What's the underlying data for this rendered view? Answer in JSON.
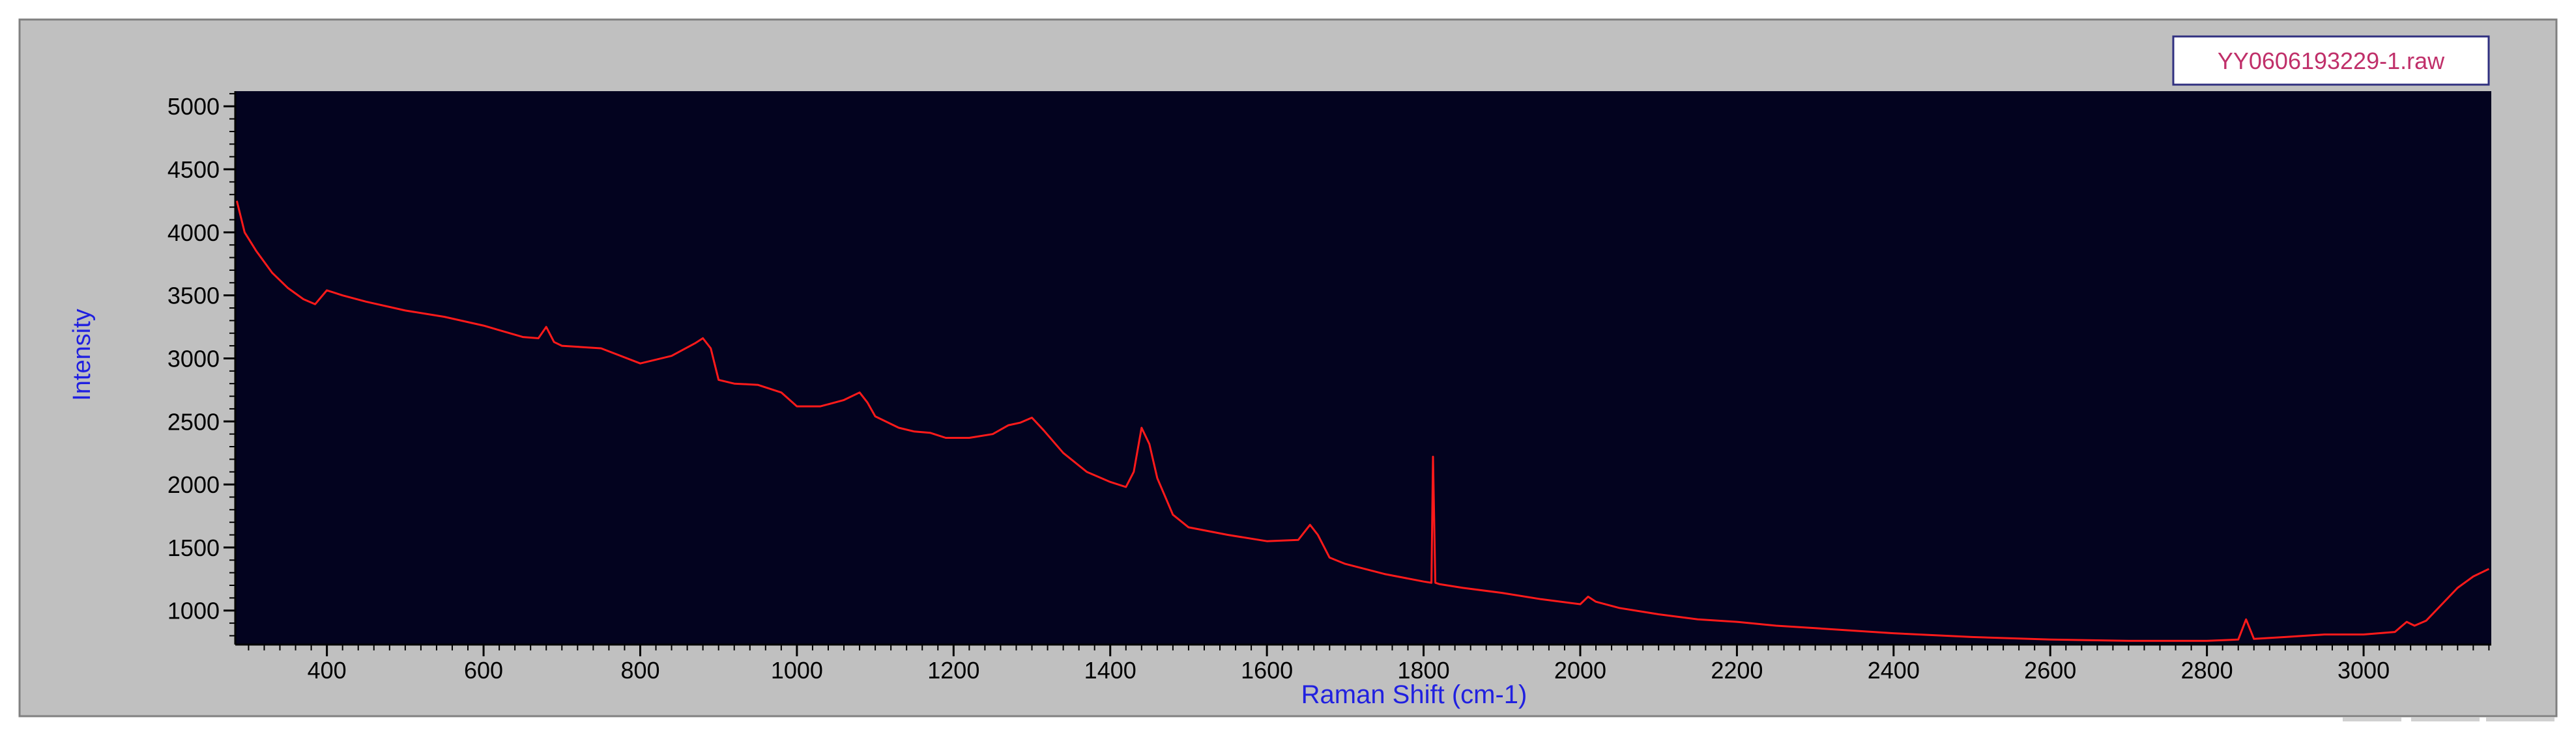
{
  "colors": {
    "panel": "#c0c0c0",
    "plot_bg": "#03031f",
    "series": "#ff1a1a",
    "axis_label": "#2020e0",
    "legend_text": "#c0306a",
    "legend_border": "#303080"
  },
  "chart_data": {
    "type": "line",
    "title": "",
    "xlabel": "Raman Shift (cm-1)",
    "ylabel": "Intensity",
    "xlim": [
      283,
      3163
    ],
    "ylim": [
      730,
      5120
    ],
    "x_ticks": [
      400,
      600,
      800,
      1000,
      1200,
      1400,
      1600,
      1800,
      2000,
      2200,
      2400,
      2600,
      2800,
      3000
    ],
    "x_tick_labels": [
      "400",
      "600",
      "800",
      "1000",
      "1200",
      "1400",
      "1600",
      "1800",
      "2000",
      "2200",
      "2400",
      "2600",
      "2800",
      "3000"
    ],
    "y_ticks": [
      1000,
      1500,
      2000,
      2500,
      3000,
      3500,
      4000,
      4500,
      5000
    ],
    "y_tick_labels": [
      "1000",
      "1500",
      "2000",
      "2500",
      "3000",
      "3500",
      "4000",
      "4500",
      "5000"
    ],
    "grid": false,
    "legend_position": "top-right",
    "legend": [
      "YY0606193229-1.raw"
    ],
    "series": [
      {
        "name": "YY0606193229-1.raw",
        "x": [
          285,
          295,
          310,
          330,
          350,
          370,
          385,
          400,
          420,
          450,
          500,
          550,
          600,
          650,
          670,
          680,
          690,
          700,
          750,
          800,
          840,
          870,
          880,
          890,
          900,
          920,
          950,
          980,
          1000,
          1030,
          1060,
          1080,
          1090,
          1100,
          1130,
          1150,
          1170,
          1190,
          1220,
          1250,
          1270,
          1285,
          1300,
          1315,
          1340,
          1370,
          1400,
          1420,
          1430,
          1440,
          1450,
          1460,
          1480,
          1500,
          1550,
          1600,
          1640,
          1655,
          1665,
          1680,
          1700,
          1750,
          1800,
          1810,
          1812,
          1815,
          1820,
          1850,
          1900,
          1950,
          2000,
          2010,
          2020,
          2050,
          2100,
          2150,
          2200,
          2250,
          2300,
          2400,
          2500,
          2600,
          2700,
          2800,
          2840,
          2850,
          2860,
          2900,
          2950,
          3000,
          3040,
          3055,
          3065,
          3080,
          3100,
          3120,
          3140,
          3160
        ],
        "y": [
          4250,
          4000,
          3850,
          3680,
          3560,
          3470,
          3430,
          3540,
          3500,
          3450,
          3380,
          3330,
          3260,
          3170,
          3160,
          3250,
          3130,
          3100,
          3080,
          2960,
          3020,
          3120,
          3160,
          3080,
          2830,
          2800,
          2790,
          2730,
          2620,
          2620,
          2670,
          2730,
          2650,
          2540,
          2450,
          2420,
          2410,
          2370,
          2370,
          2400,
          2470,
          2490,
          2530,
          2430,
          2250,
          2100,
          2020,
          1980,
          2100,
          2450,
          2320,
          2050,
          1760,
          1660,
          1600,
          1550,
          1560,
          1680,
          1600,
          1420,
          1370,
          1290,
          1230,
          1220,
          2220,
          1220,
          1210,
          1180,
          1140,
          1090,
          1050,
          1110,
          1070,
          1020,
          970,
          930,
          910,
          880,
          860,
          820,
          790,
          770,
          760,
          760,
          770,
          930,
          775,
          790,
          810,
          810,
          830,
          910,
          880,
          920,
          1050,
          1180,
          1270,
          1330
        ]
      }
    ]
  }
}
